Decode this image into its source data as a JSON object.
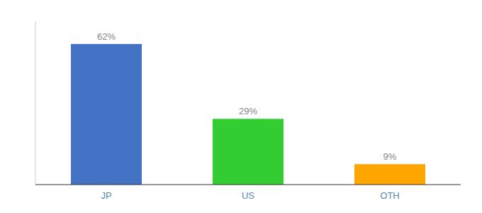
{
  "chart_data": {
    "type": "bar",
    "categories": [
      "JP",
      "US",
      "OTH"
    ],
    "values": [
      62,
      29,
      9
    ],
    "value_labels": [
      "62%",
      "29%",
      "9%"
    ],
    "colors": [
      "#4472C4",
      "#33CC33",
      "#FFA500"
    ],
    "ylim": [
      0,
      72
    ],
    "data_labels": true,
    "tick_labels": "x"
  }
}
